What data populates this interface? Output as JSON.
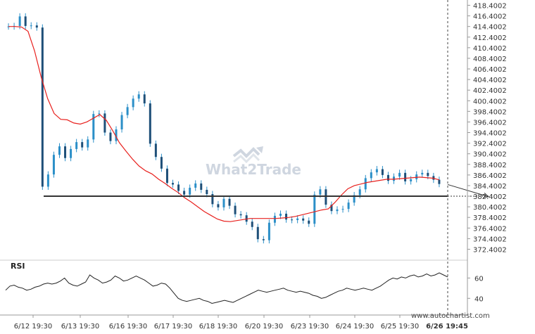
{
  "watermark": {
    "text": "What2Trade"
  },
  "footer": {
    "site": "www.autochartist.com"
  },
  "chart_data": {
    "type": "candlestick",
    "instrument_price_ticks": [
      "418.4002",
      "416.4002",
      "414.4002",
      "412.4002",
      "410.4002",
      "408.4002",
      "406.4002",
      "404.4002",
      "402.4002",
      "400.4002",
      "398.4002",
      "396.4002",
      "394.4002",
      "392.4002",
      "390.4002",
      "388.4002",
      "386.4002",
      "384.4002",
      "382.4002",
      "380.4002",
      "378.4002",
      "376.4002",
      "374.4002",
      "372.4002"
    ],
    "x_ticks": [
      "6/12 19:30",
      "6/13 19:30",
      "6/16 19:30",
      "6/17 19:30",
      "6/18 19:30",
      "6/20 19:30",
      "6/23 19:30",
      "6/24 19:30",
      "6/25 19:30",
      "6/26 19:45"
    ],
    "ylim": [
      371.4,
      418.6
    ],
    "horizontal_level": 382.4002,
    "forecast_arrow": {
      "from": 384.6,
      "to": 382.3
    },
    "close_series": [
      414.4,
      414.5,
      416.3,
      414.5,
      414.6,
      414.2,
      384.2,
      386.5,
      390.2,
      391.8,
      389.6,
      391.3,
      392.6,
      391.6,
      393.1,
      397.9,
      398.0,
      394.4,
      392.8,
      395.0,
      397.7,
      399.2,
      400.8,
      401.6,
      399.9,
      392.3,
      389.8,
      387.6,
      384.9,
      384.6,
      383.4,
      382.7,
      384.0,
      384.8,
      383.6,
      382.8,
      380.9,
      380.3,
      381.9,
      380.6,
      379.0,
      378.8,
      377.6,
      376.6,
      374.3,
      374.1,
      377.4,
      378.7,
      379.1,
      378.0,
      377.9,
      378.2,
      377.8,
      377.2,
      382.7,
      383.7,
      380.8,
      379.6,
      379.9,
      380.0,
      381.2,
      382.6,
      383.7,
      385.8,
      386.9,
      387.5,
      386.4,
      385.3,
      386.1,
      386.8,
      385.2,
      385.6,
      386.5,
      386.8,
      386.2,
      385.5,
      384.7
    ],
    "ma_series": [
      414.4,
      414.4,
      414.3,
      413.5,
      409.8,
      404.9,
      400.8,
      398.0,
      396.9,
      396.8,
      396.2,
      396.0,
      396.4,
      397.1,
      397.8,
      396.7,
      394.7,
      392.5,
      390.9,
      389.4,
      388.1,
      387.2,
      386.6,
      385.6,
      384.8,
      383.9,
      383.1,
      382.1,
      381.3,
      380.4,
      379.5,
      378.8,
      378.1,
      377.7,
      377.6,
      377.8,
      378.0,
      378.2,
      378.2,
      378.2,
      378.2,
      378.2,
      378.3,
      378.4,
      378.6,
      378.9,
      379.2,
      379.5,
      379.8,
      380.0,
      381.2,
      382.6,
      383.8,
      384.4,
      384.7,
      385.0,
      385.2,
      385.4,
      385.6,
      385.6,
      385.7,
      385.8,
      385.9,
      386.0,
      385.9,
      385.8,
      385.5
    ],
    "rsi": {
      "label": "RSI",
      "ticks": [
        "60",
        "40"
      ],
      "ylim": [
        25,
        72
      ],
      "values": [
        48,
        52,
        53,
        51,
        50,
        48,
        49,
        51,
        52,
        54,
        55,
        54,
        55,
        57,
        60,
        55,
        53,
        52,
        54,
        56,
        63,
        60,
        58,
        55,
        56,
        58,
        62,
        60,
        57,
        58,
        60,
        62,
        60,
        58,
        55,
        52,
        53,
        55,
        54,
        50,
        45,
        40,
        38,
        37,
        38,
        39,
        40,
        38,
        37,
        35,
        36,
        37,
        38,
        37,
        36,
        38,
        40,
        42,
        44,
        46,
        48,
        47,
        46,
        47,
        48,
        49,
        50,
        48,
        47,
        46,
        47,
        46,
        45,
        43,
        42,
        40,
        41,
        43,
        45,
        47,
        48,
        50,
        49,
        48,
        49,
        50,
        49,
        48,
        50,
        52,
        55,
        58,
        60,
        59,
        61,
        60,
        62,
        63,
        61,
        62,
        64,
        62,
        63,
        65,
        63,
        61
      ]
    },
    "grid": false,
    "colors": {
      "candles": "#2b8fc8",
      "ma": "#e8211e",
      "level": "#333333",
      "rsi": "#222222",
      "cursor": "#444444"
    }
  }
}
